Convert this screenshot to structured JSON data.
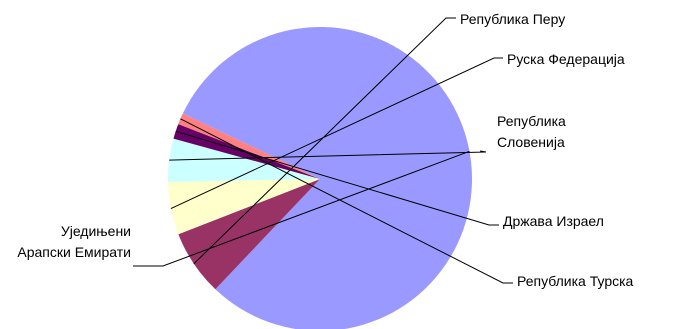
{
  "chart_data": {
    "type": "pie",
    "title": "",
    "slices": [
      {
        "label": [
          "Уједињени",
          "Арапски Емирати"
        ],
        "value": 80.0,
        "color": "#9999ff"
      },
      {
        "label": [
          "Република Перу"
        ],
        "value": 7.0,
        "color": "#993366"
      },
      {
        "label": [
          "Руска Федерација"
        ],
        "value": 5.6,
        "color": "#ffffcc"
      },
      {
        "label": [
          "Република",
          "Словенија"
        ],
        "value": 4.6,
        "color": "#ccffff"
      },
      {
        "label": [
          "Држава Израел"
        ],
        "value": 1.6,
        "color": "#660066"
      },
      {
        "label": [
          "Република Турска"
        ],
        "value": 1.2,
        "color": "#ff8080"
      }
    ],
    "legend": "none (leader-line labels)"
  }
}
